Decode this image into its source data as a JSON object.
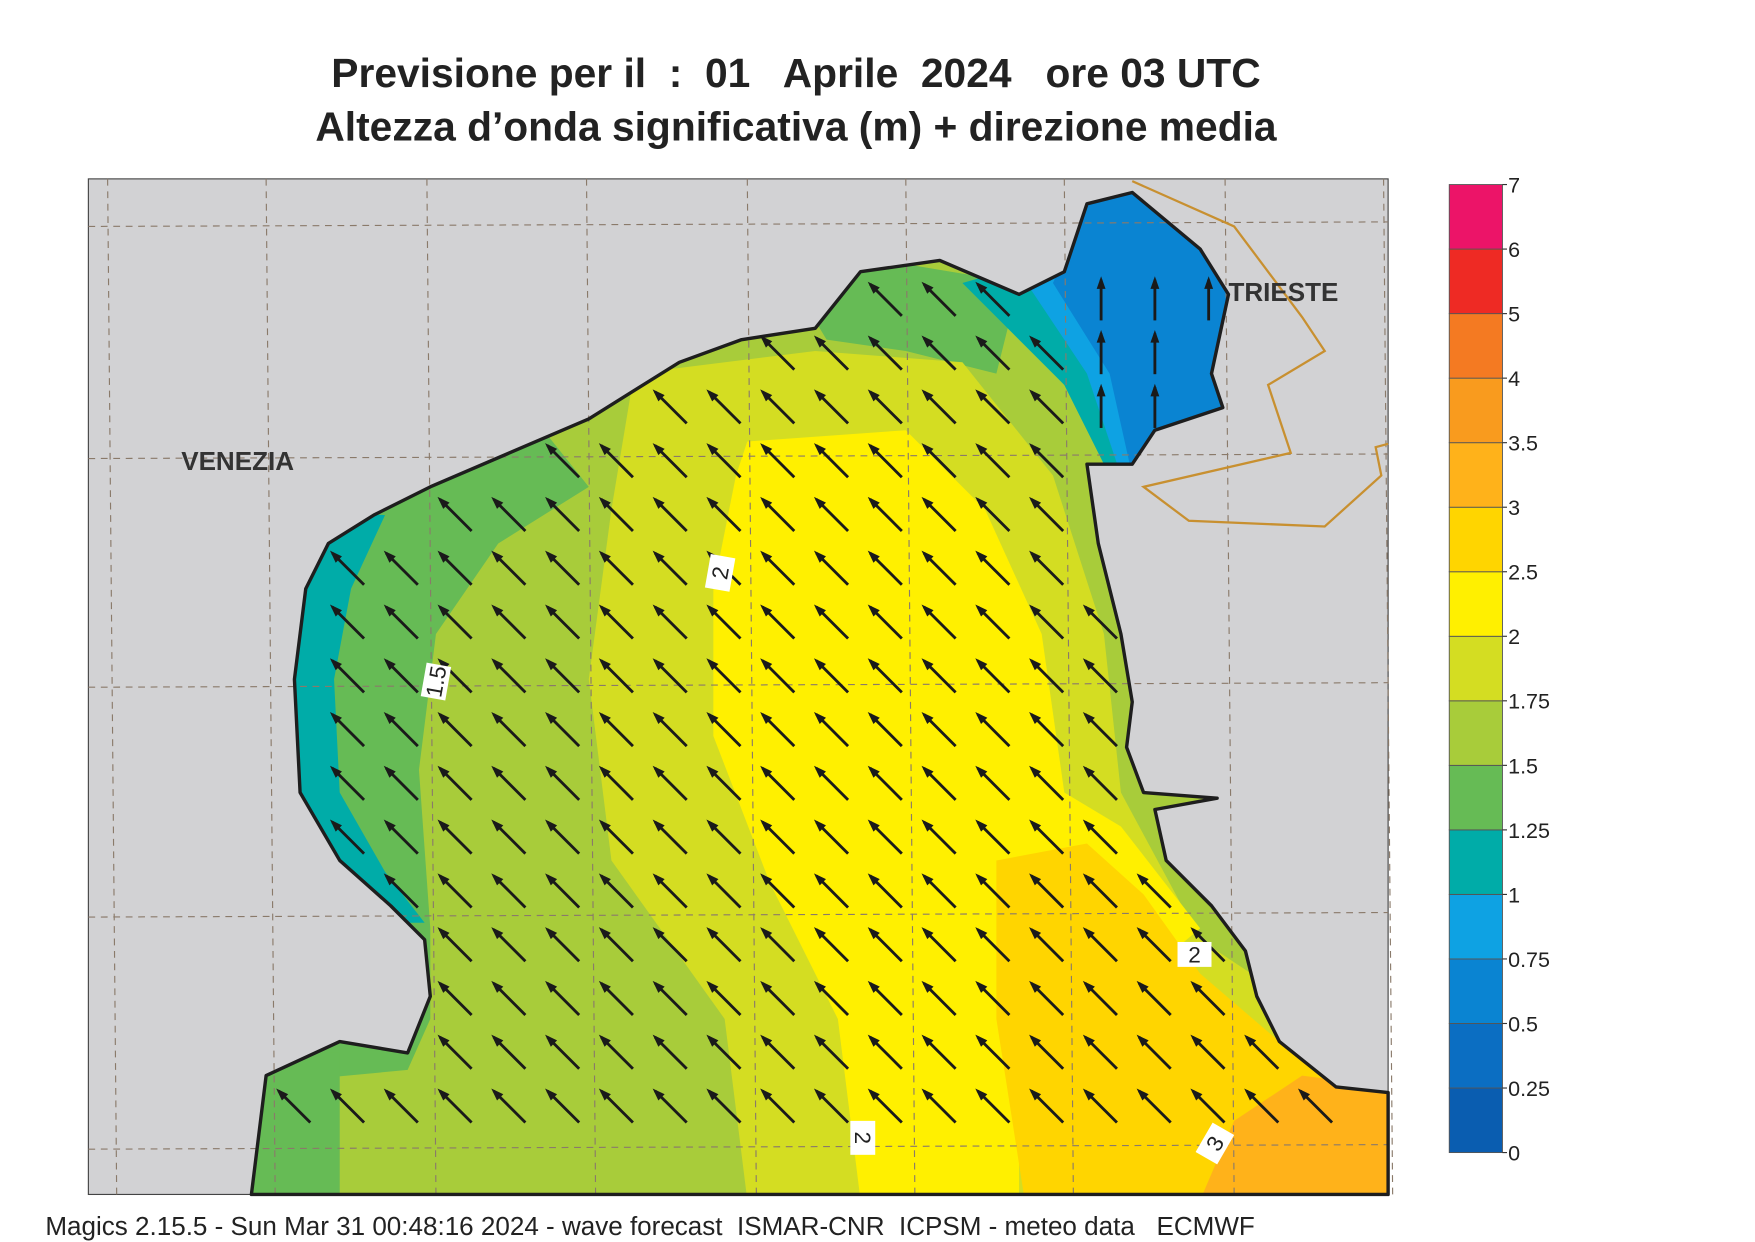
{
  "title": "Previsione per il  :  01   Aprile  2024   ore 03 UTC",
  "subtitle": "Altezza d’onda significativa (m) + direzione media",
  "places": [
    "VENEZIA",
    "TRIESTE"
  ],
  "contour_labels": [
    2,
    1.5,
    2,
    2,
    3
  ],
  "colorbar": {
    "levels": [
      0,
      0.25,
      0.5,
      0.75,
      1,
      1.25,
      1.5,
      1.75,
      2,
      2.5,
      3,
      3.5,
      4,
      5,
      6,
      7
    ],
    "colors": [
      "#0a5db0",
      "#0b6ec2",
      "#0a84d2",
      "#0ea2e3",
      "#00aca8",
      "#66bb55",
      "#a8cc3a",
      "#d4dd22",
      "#fff000",
      "#ffd500",
      "#ffb21a",
      "#f99b1e",
      "#f47a22",
      "#ee2a24",
      "#ec1468"
    ]
  },
  "footer": "Magics 2.15.5 - Sun Mar 31 00:48:16 2024 - wave forecast  ISMAR-CNR  ICPSM - meteo data   ECMWF"
}
